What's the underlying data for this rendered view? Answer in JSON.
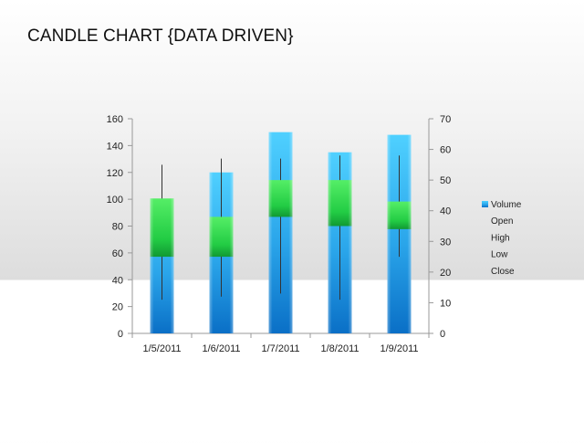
{
  "slide": {
    "title": "CANDLE CHART {DATA DRIVEN}"
  },
  "chart_data": {
    "type": "bar",
    "title": "",
    "categories": [
      "1/5/2011",
      "1/6/2011",
      "1/7/2011",
      "1/8/2011",
      "1/9/2011"
    ],
    "y_left": {
      "min": 0,
      "max": 160,
      "ticks": [
        "0",
        "20",
        "40",
        "60",
        "80",
        "100",
        "120",
        "140",
        "160"
      ]
    },
    "y_right": {
      "min": 0,
      "max": 70,
      "ticks": [
        "0",
        "10",
        "20",
        "30",
        "40",
        "50",
        "60",
        "70"
      ]
    },
    "series": [
      {
        "name": "Volume",
        "axis": "left",
        "values": [
          100,
          120,
          150,
          135,
          148
        ]
      },
      {
        "name": "Open",
        "axis": "right",
        "values": [
          25,
          25,
          38,
          35,
          34
        ]
      },
      {
        "name": "High",
        "axis": "right",
        "values": [
          55,
          57,
          57,
          58,
          58
        ]
      },
      {
        "name": "Low",
        "axis": "right",
        "values": [
          11,
          12,
          13,
          11,
          25
        ]
      },
      {
        "name": "Close",
        "axis": "right",
        "values": [
          44,
          38,
          50,
          50,
          43
        ]
      }
    ],
    "legend": [
      "Volume",
      "Open",
      "High",
      "Low",
      "Close"
    ],
    "legend_position": "right",
    "grid": false,
    "colors": {
      "volume": "#2aa0e8",
      "up_candle": "#33dd55",
      "down_candle": "#ffd400",
      "wick": "#333333",
      "axis": "#999999"
    }
  }
}
